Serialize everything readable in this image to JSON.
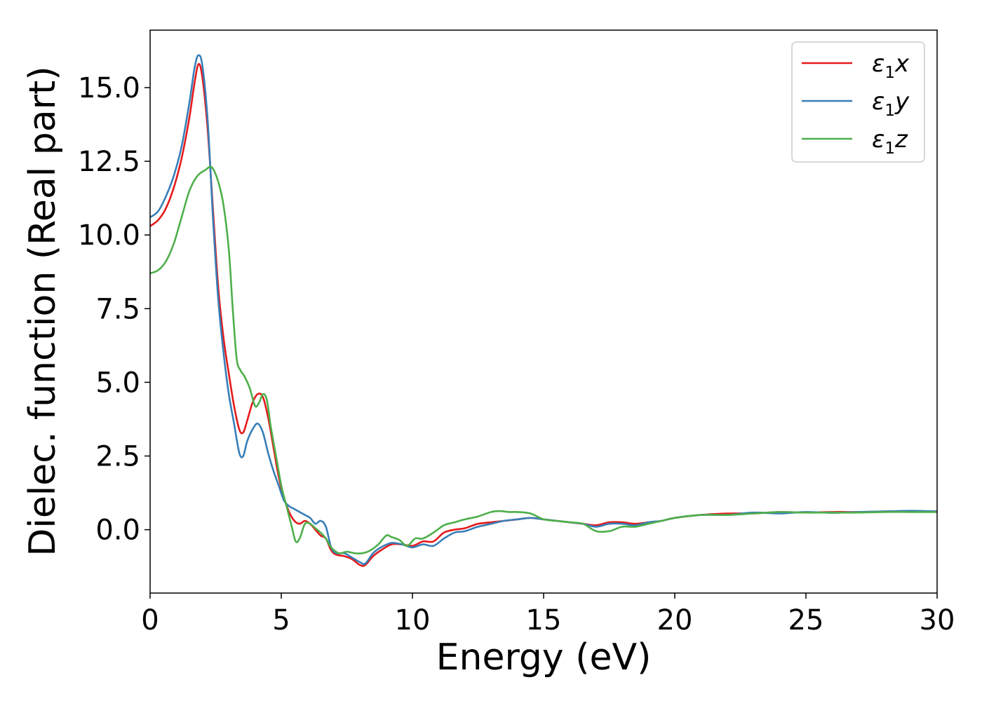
{
  "chart_data": {
    "type": "line",
    "xlabel": "Energy (eV)",
    "ylabel": "Dielec. function (Real part)",
    "xlim": [
      0,
      30
    ],
    "ylim": [
      -2.15,
      16.95
    ],
    "xticks": [
      0,
      5,
      10,
      15,
      20,
      25,
      30
    ],
    "xtick_labels": [
      "0",
      "5",
      "10",
      "15",
      "20",
      "25",
      "30"
    ],
    "yticks": [
      0,
      2.5,
      5,
      7.5,
      10,
      12.5,
      15
    ],
    "ytick_labels": [
      "0.0",
      "2.5",
      "5.0",
      "7.5",
      "10.0",
      "12.5",
      "15.0"
    ],
    "grid": false,
    "legend_position": "top-right",
    "series": [
      {
        "name": "ε₁x",
        "legend_main": "ε",
        "legend_sub": "1",
        "legend_var": "x",
        "color": "#e41a1c",
        "x": [
          0,
          0.3,
          0.6,
          0.9,
          1.2,
          1.5,
          1.7,
          1.85,
          2.0,
          2.2,
          2.4,
          2.6,
          2.8,
          3.0,
          3.2,
          3.4,
          3.55,
          3.7,
          3.9,
          4.1,
          4.3,
          4.5,
          4.7,
          4.9,
          5.1,
          5.3,
          5.5,
          5.7,
          5.9,
          6.1,
          6.3,
          6.5,
          6.7,
          6.9,
          7.1,
          7.4,
          7.7,
          8.0,
          8.2,
          8.5,
          8.8,
          9.2,
          9.6,
          10.0,
          10.4,
          10.8,
          11.2,
          11.6,
          12.0,
          12.5,
          13.0,
          13.5,
          14.0,
          14.5,
          15.0,
          15.5,
          16.0,
          16.5,
          17.0,
          17.5,
          18.0,
          18.5,
          19.0,
          19.5,
          20.0,
          21.0,
          22.0,
          23.0,
          24.0,
          25.0,
          26.0,
          27.0,
          28.0,
          29.0,
          30.0
        ],
        "y": [
          10.3,
          10.5,
          10.9,
          11.6,
          12.6,
          14.0,
          15.2,
          15.8,
          15.3,
          13.5,
          10.8,
          8.2,
          6.5,
          5.3,
          4.2,
          3.4,
          3.3,
          3.7,
          4.3,
          4.6,
          4.5,
          3.8,
          2.8,
          1.8,
          1.1,
          0.6,
          0.3,
          0.2,
          0.3,
          0.2,
          0.0,
          -0.2,
          -0.3,
          -0.7,
          -0.85,
          -0.9,
          -1.0,
          -1.2,
          -1.2,
          -0.9,
          -0.7,
          -0.5,
          -0.5,
          -0.55,
          -0.4,
          -0.4,
          -0.1,
          0.0,
          0.05,
          0.2,
          0.25,
          0.3,
          0.35,
          0.4,
          0.35,
          0.3,
          0.25,
          0.2,
          0.15,
          0.25,
          0.25,
          0.2,
          0.25,
          0.3,
          0.4,
          0.5,
          0.55,
          0.55,
          0.6,
          0.58,
          0.6,
          0.6,
          0.62,
          0.63,
          0.62
        ]
      },
      {
        "name": "ε₁y",
        "legend_main": "ε",
        "legend_sub": "1",
        "legend_var": "y",
        "color": "#377eb8",
        "x": [
          0,
          0.3,
          0.6,
          0.9,
          1.2,
          1.5,
          1.7,
          1.85,
          2.0,
          2.2,
          2.4,
          2.6,
          2.8,
          3.0,
          3.2,
          3.4,
          3.55,
          3.7,
          3.9,
          4.1,
          4.3,
          4.5,
          4.7,
          4.9,
          5.1,
          5.3,
          5.5,
          5.7,
          5.9,
          6.1,
          6.3,
          6.5,
          6.7,
          6.9,
          7.1,
          7.4,
          7.7,
          8.0,
          8.2,
          8.5,
          8.8,
          9.2,
          9.6,
          10.0,
          10.4,
          10.8,
          11.2,
          11.6,
          12.0,
          12.5,
          13.0,
          13.5,
          14.0,
          14.5,
          15.0,
          15.5,
          16.0,
          16.5,
          17.0,
          17.5,
          18.0,
          18.5,
          19.0,
          19.5,
          20.0,
          21.0,
          22.0,
          23.0,
          24.0,
          25.0,
          26.0,
          27.0,
          28.0,
          29.0,
          30.0
        ],
        "y": [
          10.6,
          10.8,
          11.3,
          12.0,
          13.0,
          14.5,
          15.7,
          16.1,
          15.7,
          13.8,
          10.5,
          7.8,
          6.0,
          4.6,
          3.6,
          2.6,
          2.5,
          3.0,
          3.4,
          3.6,
          3.3,
          2.6,
          2.0,
          1.5,
          1.0,
          0.8,
          0.7,
          0.6,
          0.5,
          0.4,
          0.2,
          0.3,
          0.1,
          -0.6,
          -0.8,
          -0.8,
          -0.95,
          -1.1,
          -1.15,
          -0.8,
          -0.6,
          -0.45,
          -0.5,
          -0.6,
          -0.5,
          -0.55,
          -0.3,
          -0.1,
          -0.05,
          0.1,
          0.2,
          0.3,
          0.35,
          0.4,
          0.35,
          0.3,
          0.25,
          0.2,
          0.1,
          0.2,
          0.2,
          0.15,
          0.25,
          0.3,
          0.4,
          0.5,
          0.5,
          0.58,
          0.55,
          0.6,
          0.57,
          0.6,
          0.62,
          0.64,
          0.62
        ]
      },
      {
        "name": "ε₁z",
        "legend_main": "ε",
        "legend_sub": "1",
        "legend_var": "z",
        "color": "#4daf4a",
        "x": [
          0,
          0.3,
          0.6,
          0.9,
          1.2,
          1.5,
          1.8,
          2.1,
          2.35,
          2.6,
          2.8,
          3.0,
          3.15,
          3.3,
          3.45,
          3.6,
          3.8,
          4.0,
          4.15,
          4.3,
          4.45,
          4.6,
          4.8,
          5.0,
          5.2,
          5.4,
          5.55,
          5.7,
          5.9,
          6.1,
          6.3,
          6.5,
          6.7,
          6.9,
          7.2,
          7.5,
          7.8,
          8.1,
          8.4,
          8.7,
          9.0,
          9.2,
          9.5,
          9.8,
          10.1,
          10.4,
          10.8,
          11.2,
          11.6,
          12.0,
          12.5,
          13.0,
          13.3,
          13.7,
          14.0,
          14.5,
          15.0,
          15.5,
          16.0,
          16.5,
          17.0,
          17.5,
          18.0,
          18.5,
          19.0,
          19.5,
          20.0,
          21.0,
          22.0,
          23.0,
          24.0,
          25.0,
          26.0,
          27.0,
          28.0,
          29.0,
          30.0
        ],
        "y": [
          8.7,
          8.8,
          9.1,
          9.7,
          10.6,
          11.5,
          12.0,
          12.2,
          12.3,
          11.8,
          11.0,
          9.5,
          7.5,
          5.8,
          5.4,
          5.2,
          4.8,
          4.2,
          4.3,
          4.6,
          4.4,
          3.5,
          2.5,
          1.5,
          0.8,
          0.1,
          -0.4,
          -0.3,
          0.2,
          0.2,
          0.05,
          -0.1,
          -0.3,
          -0.6,
          -0.8,
          -0.75,
          -0.8,
          -0.8,
          -0.7,
          -0.5,
          -0.2,
          -0.25,
          -0.35,
          -0.55,
          -0.3,
          -0.3,
          -0.1,
          0.15,
          0.25,
          0.35,
          0.45,
          0.6,
          0.63,
          0.6,
          0.6,
          0.55,
          0.35,
          0.3,
          0.25,
          0.2,
          -0.05,
          -0.05,
          0.1,
          0.1,
          0.2,
          0.3,
          0.4,
          0.5,
          0.5,
          0.55,
          0.6,
          0.58,
          0.58,
          0.58,
          0.6,
          0.6,
          0.6
        ]
      }
    ]
  }
}
